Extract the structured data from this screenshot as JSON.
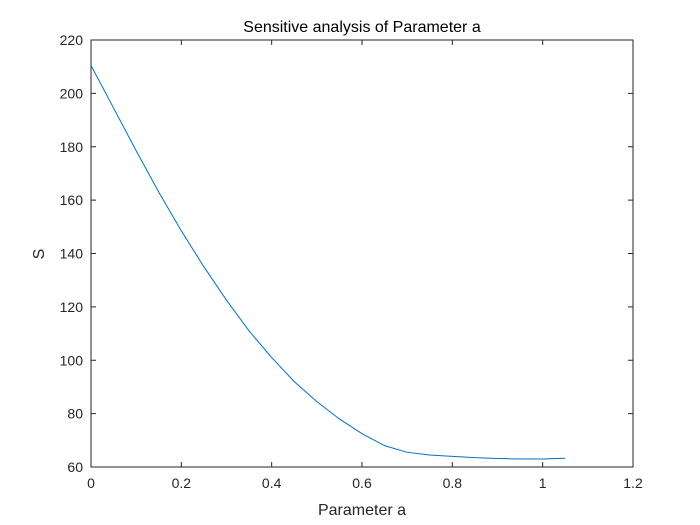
{
  "chart_data": {
    "type": "line",
    "title": "Sensitive analysis of Parameter a",
    "xlabel": "Parameter a",
    "ylabel": "S",
    "xlim": [
      0,
      1.2
    ],
    "ylim": [
      60,
      220
    ],
    "xticks": [
      0,
      0.2,
      0.4,
      0.6,
      0.8,
      1,
      1.2
    ],
    "xtick_labels": [
      "0",
      "0.2",
      "0.4",
      "0.6",
      "0.8",
      "1",
      "1.2"
    ],
    "yticks": [
      60,
      80,
      100,
      120,
      140,
      160,
      180,
      200,
      220
    ],
    "ytick_labels": [
      "60",
      "80",
      "100",
      "120",
      "140",
      "160",
      "180",
      "200",
      "220"
    ],
    "grid": false,
    "line_color": "#0072BD",
    "series": [
      {
        "x": [
          0,
          0.05,
          0.1,
          0.15,
          0.2,
          0.25,
          0.3,
          0.35,
          0.4,
          0.45,
          0.5,
          0.55,
          0.6,
          0.65,
          0.7,
          0.75,
          0.8,
          0.85,
          0.9,
          0.95,
          1.0,
          1.05
        ],
        "y": [
          210.5,
          194.5,
          178.5,
          163.0,
          148.5,
          135.0,
          122.5,
          111.0,
          101.0,
          92.0,
          84.5,
          78.0,
          72.5,
          68.0,
          65.5,
          64.5,
          64.0,
          63.5,
          63.2,
          63.0,
          63.0,
          63.3
        ]
      }
    ]
  }
}
